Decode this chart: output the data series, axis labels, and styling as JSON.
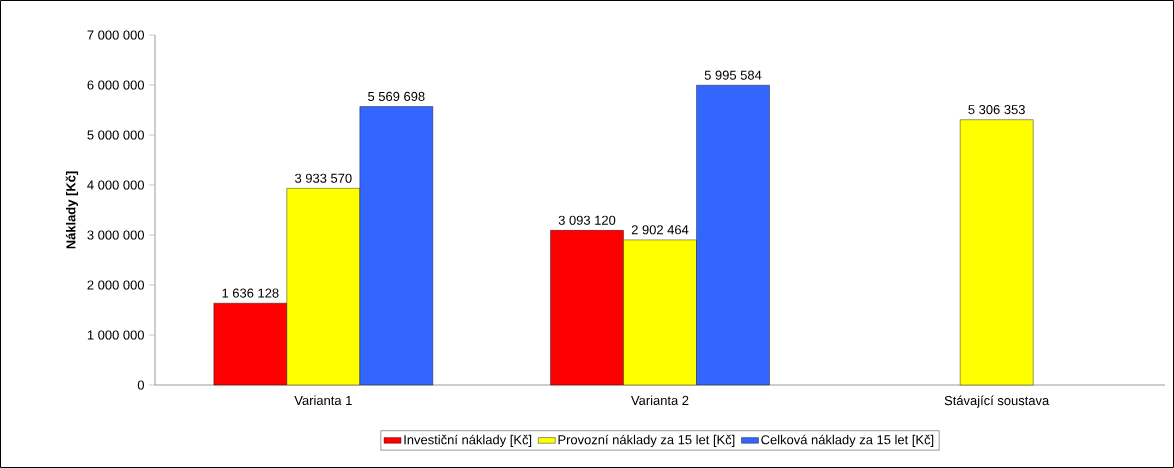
{
  "chart_data": {
    "type": "bar",
    "ylabel": "Náklady [Kč]",
    "categories": [
      "Varianta 1",
      "Varianta 2",
      "Stávající soustava"
    ],
    "series": [
      {
        "name": "Investiční náklady  [Kč]",
        "color": "#ff0000",
        "values": [
          1636128,
          3093120,
          null
        ]
      },
      {
        "name": "Provozní náklady za 15 let [Kč]",
        "color": "#ffff00",
        "values": [
          3933570,
          2902464,
          5306353
        ]
      },
      {
        "name": "Celková náklady za 15 let [Kč]",
        "color": "#3366ff",
        "values": [
          5569698,
          5995584,
          null
        ]
      }
    ],
    "ylim": [
      0,
      7000000
    ],
    "yticks": [
      {
        "value": 0,
        "label": "0"
      },
      {
        "value": 1000000,
        "label": "1 000 000"
      },
      {
        "value": 2000000,
        "label": "2 000 000"
      },
      {
        "value": 3000000,
        "label": "3 000 000"
      },
      {
        "value": 4000000,
        "label": "4 000 000"
      },
      {
        "value": 5000000,
        "label": "5 000 000"
      },
      {
        "value": 6000000,
        "label": "6 000 000"
      },
      {
        "value": 7000000,
        "label": "7 000 000"
      }
    ],
    "data_labels": true,
    "legend": "bottom",
    "grid": false
  }
}
